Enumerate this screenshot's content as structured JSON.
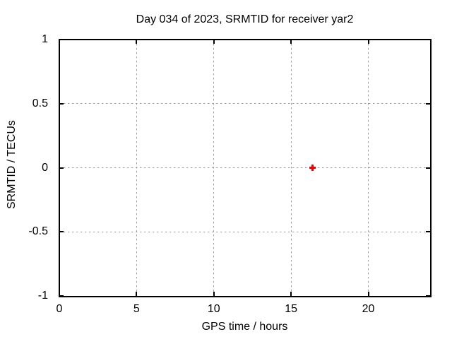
{
  "title": "Day 034 of 2023, SRMTID for receiver yar2",
  "chart_data": {
    "type": "scatter",
    "title": "Day 034 of 2023, SRMTID for receiver yar2",
    "xlabel": "GPS time / hours",
    "ylabel": "SRMTID / TECUs",
    "xlim": [
      0,
      24
    ],
    "ylim": [
      -1,
      1
    ],
    "xticks": [
      0,
      5,
      10,
      15,
      20
    ],
    "yticks": [
      1,
      0.5,
      0,
      -0.5,
      -1
    ],
    "grid": "dashed, at major ticks, mirrored inward tick marks on all four borders",
    "legend": "none",
    "series": [
      {
        "name": "SRMTID",
        "marker": "plus",
        "color": "#ee0000",
        "points": [
          {
            "x": 16.4,
            "y": 0.0
          }
        ]
      }
    ]
  },
  "colors": {
    "background": "#ffffff",
    "axis": "#000000",
    "text": "#000000",
    "grid": "#9c9c9c",
    "marker": "#ee0000"
  }
}
